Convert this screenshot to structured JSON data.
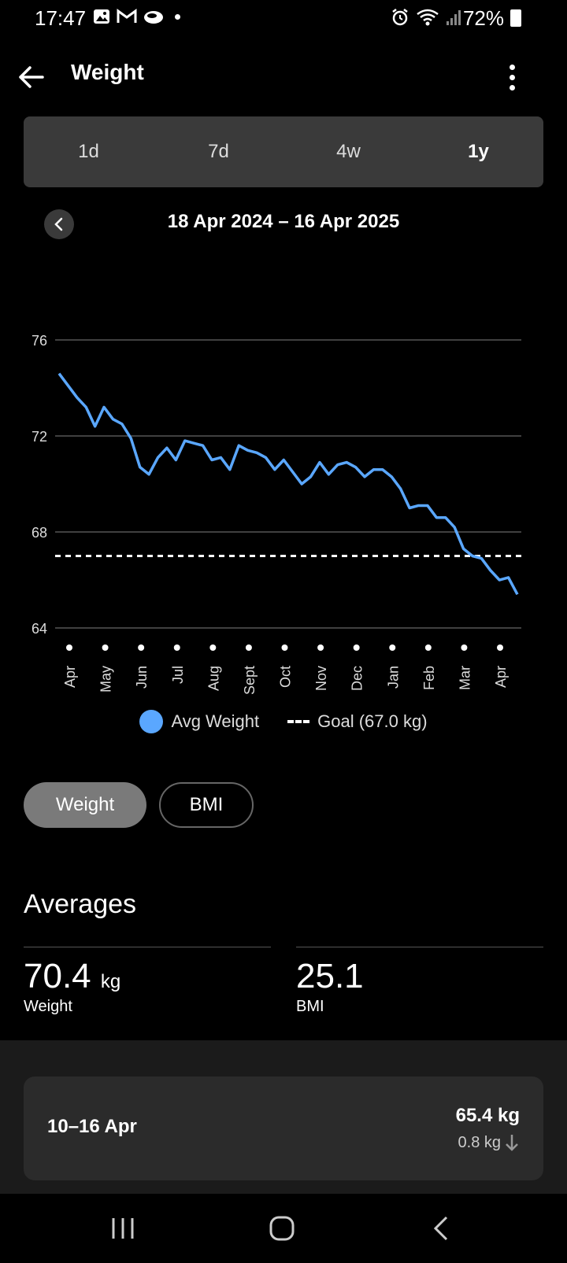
{
  "status_bar": {
    "time": "17:47",
    "battery": "72%",
    "icons_left": [
      "gallery-icon",
      "gmail-icon",
      "cloud-icon",
      "dot-icon"
    ],
    "icons_right": [
      "alarm-icon",
      "wifi-icon",
      "signal-icon",
      "battery-icon"
    ]
  },
  "header": {
    "title": "Weight"
  },
  "period_tabs": [
    {
      "label": "1d",
      "active": false
    },
    {
      "label": "7d",
      "active": false
    },
    {
      "label": "4w",
      "active": false
    },
    {
      "label": "1y",
      "active": true
    }
  ],
  "date_range": "18 Apr 2024 – 16 Apr 2025",
  "chart_data": {
    "type": "line",
    "title": "",
    "xlabel": "",
    "ylabel": "",
    "ylim": [
      64,
      76
    ],
    "yticks": [
      "76",
      "72",
      "68",
      "64"
    ],
    "grid": true,
    "month_labels": [
      "Apr",
      "May",
      "Jun",
      "Jul",
      "Aug",
      "Sept",
      "Oct",
      "Nov",
      "Dec",
      "Jan",
      "Feb",
      "Mar",
      "Apr"
    ],
    "series": [
      {
        "name": "Avg Weight",
        "color": "#5aa7ff",
        "values": [
          74.6,
          74.1,
          73.6,
          73.2,
          72.4,
          73.2,
          72.7,
          72.5,
          71.9,
          70.7,
          70.4,
          71.1,
          71.5,
          71.0,
          71.8,
          71.7,
          71.6,
          71.0,
          71.1,
          70.6,
          71.6,
          71.4,
          71.3,
          71.1,
          70.6,
          71.0,
          70.5,
          70.0,
          70.3,
          70.9,
          70.4,
          70.8,
          70.9,
          70.7,
          70.3,
          70.6,
          70.6,
          70.3,
          69.8,
          69.0,
          69.1,
          69.1,
          68.6,
          68.6,
          68.2,
          67.3,
          67.0,
          66.9,
          66.4,
          66.0,
          66.1,
          65.4
        ]
      }
    ],
    "goal": {
      "name": "Goal (67.0 kg)",
      "value": 67.0,
      "color": "#ffffff"
    },
    "legend": [
      "Avg Weight",
      "Goal (67.0 kg)"
    ]
  },
  "metric_toggle": {
    "weight_label": "Weight",
    "bmi_label": "BMI"
  },
  "averages": {
    "title": "Averages",
    "weight_value": "70.4",
    "weight_unit": "kg",
    "weight_label": "Weight",
    "bmi_value": "25.1",
    "bmi_label": "BMI"
  },
  "week_summary": {
    "range": "10–16 Apr",
    "value": "65.4 kg",
    "change": "0.8 kg"
  }
}
